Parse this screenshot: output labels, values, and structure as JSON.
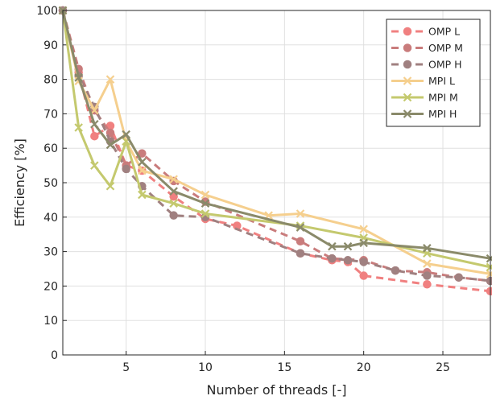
{
  "chart_data": {
    "type": "line",
    "xlabel": "Number of threads [-]",
    "ylabel": "Efficiency [%]",
    "xlim": [
      1,
      28
    ],
    "ylim": [
      0,
      100
    ],
    "xticks": [
      5,
      10,
      15,
      20,
      25
    ],
    "yticks": [
      0,
      10,
      20,
      30,
      40,
      50,
      60,
      70,
      80,
      90,
      100
    ],
    "grid": true,
    "legend_position": "top-right",
    "series": [
      {
        "name": "OMP L",
        "style": "dashed",
        "marker": "circle",
        "color": "#f08080",
        "x": [
          1,
          2,
          3,
          4,
          5,
          6,
          8,
          10,
          12,
          16,
          18,
          19,
          20,
          24,
          28
        ],
        "y": [
          100,
          82,
          63.5,
          66.5,
          55,
          53.5,
          46,
          39.5,
          37.5,
          29.5,
          27.5,
          27,
          23,
          20.5,
          18.5
        ]
      },
      {
        "name": "OMP M",
        "style": "dashed",
        "marker": "circle",
        "color": "#c97c7c",
        "x": [
          1,
          2,
          3,
          4,
          5,
          6,
          8,
          10,
          16,
          18,
          20,
          22,
          24,
          26,
          28
        ],
        "y": [
          100,
          83,
          71,
          64.5,
          55,
          58.5,
          50.5,
          44.5,
          33,
          28,
          27.5,
          24.5,
          24,
          22.5,
          21.5
        ]
      },
      {
        "name": "OMP H",
        "style": "dashed",
        "marker": "circle",
        "color": "#a08080",
        "x": [
          1,
          2,
          3,
          4,
          5,
          6,
          8,
          10,
          16,
          18,
          19,
          20,
          22,
          24,
          26,
          28
        ],
        "y": [
          100,
          81,
          72,
          62,
          54,
          49,
          40.5,
          40,
          29.5,
          28,
          27.5,
          27,
          24.5,
          23,
          22.5,
          21.5
        ]
      },
      {
        "name": "MPI L",
        "style": "solid",
        "marker": "x",
        "color": "#f5cf8e",
        "x": [
          1,
          2,
          3,
          4,
          5,
          6,
          8,
          10,
          14,
          16,
          20,
          24,
          28
        ],
        "y": [
          100,
          79.5,
          71,
          80,
          62,
          53.5,
          51,
          46.5,
          40.5,
          41,
          36.5,
          26.5,
          23.5
        ]
      },
      {
        "name": "MPI M",
        "style": "solid",
        "marker": "x",
        "color": "#c4c96e",
        "x": [
          1,
          2,
          3,
          4,
          5,
          6,
          8,
          10,
          16,
          20,
          24,
          28
        ],
        "y": [
          100,
          66,
          55,
          49,
          62,
          46.5,
          44,
          41,
          37.5,
          34,
          29.5,
          25.5
        ]
      },
      {
        "name": "MPI H",
        "style": "solid",
        "marker": "x",
        "color": "#8a8a6a",
        "x": [
          1,
          2,
          3,
          4,
          5,
          6,
          8,
          10,
          16,
          18,
          19,
          20,
          24,
          28
        ],
        "y": [
          100,
          80.5,
          67,
          61,
          64,
          56,
          47.5,
          44,
          37,
          31.5,
          31.5,
          32.5,
          31,
          28
        ]
      }
    ]
  }
}
